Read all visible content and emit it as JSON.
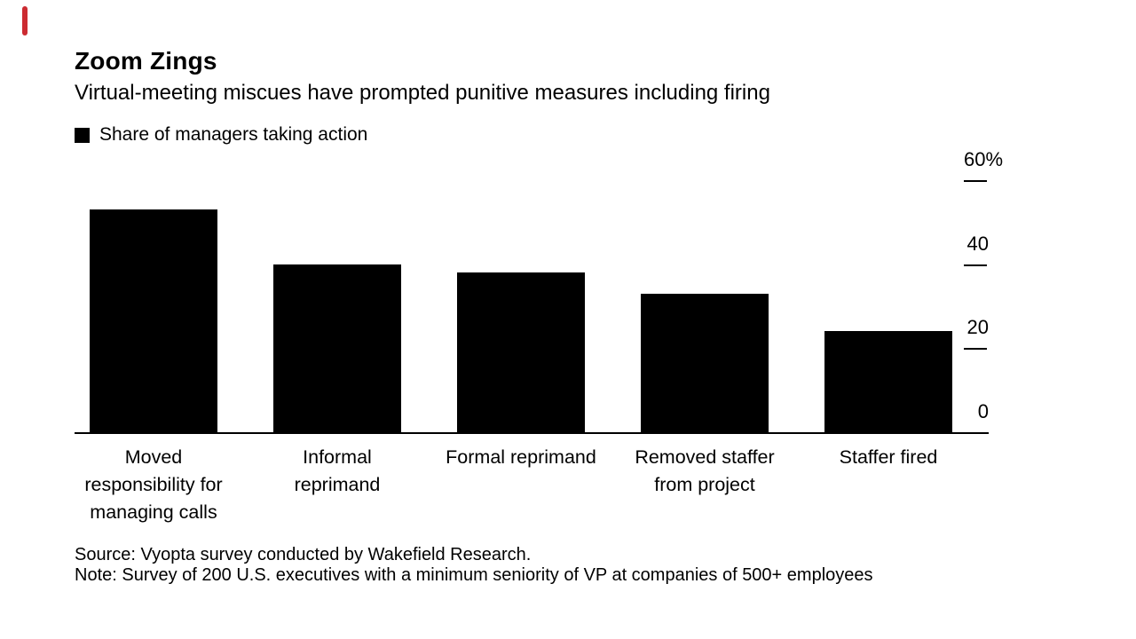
{
  "brand": {
    "accent_bar_color": "#cc2b31",
    "ink_color": "#000000",
    "background_color": "#ffffff"
  },
  "header": {
    "title": "Zoom Zings",
    "subtitle": "Virtual-meeting miscues have prompted punitive measures including firing"
  },
  "legend": {
    "marker": "black-square",
    "label": "Share of managers taking action"
  },
  "footer": {
    "source": "Source: Vyopta survey conducted by Wakefield Research.",
    "note": "Note: Survey of 200 U.S. executives with a minimum seniority of VP at companies of 500+ employees"
  },
  "chart_data": {
    "type": "bar",
    "title": "Zoom Zings",
    "subtitle": "Virtual-meeting miscues have prompted punitive measures including firing",
    "series_name": "Share of managers taking action",
    "categories": [
      "Moved responsibility for managing calls",
      "Informal reprimand",
      "Formal reprimand",
      "Removed staffer from project",
      "Staffer fired"
    ],
    "category_lines": [
      [
        "Moved",
        "responsibility for",
        "managing calls"
      ],
      [
        "Informal",
        "reprimand"
      ],
      [
        "Formal reprimand"
      ],
      [
        "Removed staffer",
        "from project"
      ],
      [
        "Staffer fired"
      ]
    ],
    "values": [
      53,
      40,
      38,
      33,
      24
    ],
    "unit": "%",
    "ylim": [
      0,
      60
    ],
    "yticks": [
      60,
      40,
      20,
      0
    ],
    "ytick_labels": [
      "60%",
      "40",
      "20",
      "0"
    ],
    "axis_side": "right",
    "grid": false,
    "bar_color": "#000000",
    "source": "Source: Vyopta survey conducted by Wakefield Research.",
    "note": "Note: Survey of 200 U.S. executives with a minimum seniority of VP at companies of 500+ employees"
  }
}
